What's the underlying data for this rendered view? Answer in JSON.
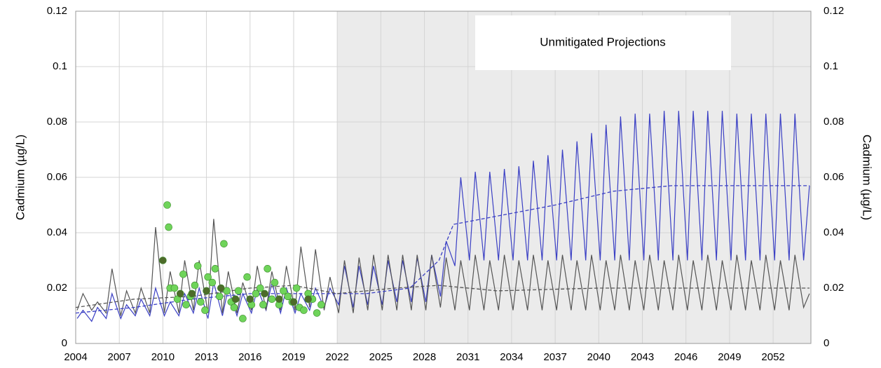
{
  "chart_data": {
    "type": "line",
    "annotation": "Unmitigated Projections",
    "y_label": "Cadmium (µg/L)",
    "y2_label": "Cadmium (µg/L)",
    "xlim": [
      2004,
      2054.6
    ],
    "xticks": [
      2004,
      2007,
      2010,
      2013,
      2016,
      2019,
      2022,
      2025,
      2028,
      2031,
      2034,
      2037,
      2040,
      2043,
      2046,
      2049,
      2052
    ],
    "ylim": [
      0,
      0.12
    ],
    "yticks": [
      0,
      0.02,
      0.04,
      0.06,
      0.08,
      0.1,
      0.12
    ],
    "y2lim": [
      0,
      0.12
    ],
    "y2ticks": [
      0,
      0.02,
      0.04,
      0.06,
      0.08,
      0.1,
      0.12
    ],
    "grid": true,
    "projection_start": 2022,
    "projection_color": "#ebebeb",
    "series": [
      {
        "style": "line",
        "color": "#3a3fc4",
        "x": [
          2004.1,
          2004.5,
          2005.1,
          2005.5,
          2006.1,
          2006.5,
          2007.1,
          2007.5,
          2008.1,
          2008.5,
          2009.1,
          2009.5,
          2010.1,
          2010.5,
          2011.1,
          2011.5,
          2012.1,
          2012.5,
          2013.1,
          2013.5,
          2014.1,
          2014.5,
          2015.1,
          2015.5,
          2016.1,
          2016.5,
          2017.1,
          2017.5,
          2018.1,
          2018.5,
          2019.1,
          2019.5,
          2020.1,
          2020.5,
          2021.1,
          2021.5,
          2022.1,
          2022.5,
          2023.1,
          2023.5,
          2024.1,
          2024.5,
          2025.1,
          2025.5,
          2026.1,
          2026.5,
          2027.1,
          2027.5,
          2028.1,
          2028.5,
          2029.1,
          2029.5,
          2030.1,
          2030.5,
          2031.1,
          2031.5,
          2032.1,
          2032.5,
          2033.1,
          2033.5,
          2034.1,
          2034.5,
          2035.1,
          2035.5,
          2036.1,
          2036.5,
          2037.1,
          2037.5,
          2038.1,
          2038.5,
          2039.1,
          2039.5,
          2040.1,
          2040.5,
          2041.1,
          2041.5,
          2042.1,
          2042.5,
          2043.1,
          2043.5,
          2044.1,
          2044.5,
          2045.1,
          2045.5,
          2046.1,
          2046.5,
          2047.1,
          2047.5,
          2048.1,
          2048.5,
          2049.1,
          2049.5,
          2050.1,
          2050.5,
          2051.1,
          2051.5,
          2052.1,
          2052.5,
          2053.1,
          2053.5,
          2054.1,
          2054.5
        ],
        "values": [
          0.009,
          0.012,
          0.008,
          0.013,
          0.009,
          0.018,
          0.009,
          0.014,
          0.01,
          0.016,
          0.01,
          0.02,
          0.01,
          0.015,
          0.01,
          0.018,
          0.011,
          0.02,
          0.009,
          0.022,
          0.01,
          0.02,
          0.01,
          0.018,
          0.011,
          0.02,
          0.012,
          0.022,
          0.011,
          0.02,
          0.011,
          0.018,
          0.012,
          0.02,
          0.013,
          0.02,
          0.014,
          0.028,
          0.013,
          0.028,
          0.014,
          0.028,
          0.014,
          0.03,
          0.015,
          0.03,
          0.015,
          0.031,
          0.015,
          0.032,
          0.017,
          0.037,
          0.028,
          0.06,
          0.03,
          0.062,
          0.03,
          0.062,
          0.03,
          0.063,
          0.03,
          0.064,
          0.03,
          0.066,
          0.03,
          0.068,
          0.03,
          0.07,
          0.03,
          0.073,
          0.03,
          0.076,
          0.03,
          0.079,
          0.03,
          0.082,
          0.03,
          0.083,
          0.03,
          0.083,
          0.03,
          0.084,
          0.03,
          0.084,
          0.03,
          0.084,
          0.03,
          0.084,
          0.03,
          0.084,
          0.03,
          0.083,
          0.03,
          0.083,
          0.03,
          0.083,
          0.03,
          0.083,
          0.03,
          0.083,
          0.03,
          0.057
        ]
      },
      {
        "style": "line",
        "color": "#555555",
        "x": [
          2004.1,
          2004.5,
          2005.1,
          2005.5,
          2006.1,
          2006.5,
          2007.1,
          2007.5,
          2008.1,
          2008.5,
          2009.1,
          2009.5,
          2010.1,
          2010.5,
          2011.1,
          2011.5,
          2012.1,
          2012.5,
          2013.1,
          2013.5,
          2014.1,
          2014.5,
          2015.1,
          2015.5,
          2016.1,
          2016.5,
          2017.1,
          2017.5,
          2018.1,
          2018.5,
          2019.1,
          2019.5,
          2020.1,
          2020.5,
          2021.1,
          2021.5,
          2022.1,
          2022.5,
          2023.1,
          2023.5,
          2024.1,
          2024.5,
          2025.1,
          2025.5,
          2026.1,
          2026.5,
          2027.1,
          2027.5,
          2028.1,
          2028.5,
          2029.1,
          2029.5,
          2030.1,
          2030.5,
          2031.1,
          2031.5,
          2032.1,
          2032.5,
          2033.1,
          2033.5,
          2034.1,
          2034.5,
          2035.1,
          2035.5,
          2036.1,
          2036.5,
          2037.1,
          2037.5,
          2038.1,
          2038.5,
          2039.1,
          2039.5,
          2040.1,
          2040.5,
          2041.1,
          2041.5,
          2042.1,
          2042.5,
          2043.1,
          2043.5,
          2044.1,
          2044.5,
          2045.1,
          2045.5,
          2046.1,
          2046.5,
          2047.1,
          2047.5,
          2048.1,
          2048.5,
          2049.1,
          2049.5,
          2050.1,
          2050.5,
          2051.1,
          2051.5,
          2052.1,
          2052.5,
          2053.1,
          2053.5,
          2054.1,
          2054.5
        ],
        "values": [
          0.012,
          0.018,
          0.012,
          0.015,
          0.011,
          0.027,
          0.01,
          0.019,
          0.011,
          0.02,
          0.011,
          0.042,
          0.011,
          0.026,
          0.011,
          0.03,
          0.012,
          0.03,
          0.011,
          0.045,
          0.011,
          0.026,
          0.011,
          0.022,
          0.012,
          0.028,
          0.012,
          0.026,
          0.012,
          0.028,
          0.012,
          0.035,
          0.013,
          0.034,
          0.012,
          0.024,
          0.011,
          0.03,
          0.011,
          0.031,
          0.012,
          0.032,
          0.012,
          0.032,
          0.012,
          0.032,
          0.012,
          0.032,
          0.012,
          0.032,
          0.013,
          0.031,
          0.012,
          0.03,
          0.012,
          0.032,
          0.012,
          0.03,
          0.012,
          0.032,
          0.012,
          0.03,
          0.012,
          0.032,
          0.012,
          0.03,
          0.012,
          0.032,
          0.012,
          0.03,
          0.012,
          0.032,
          0.012,
          0.03,
          0.012,
          0.032,
          0.012,
          0.03,
          0.012,
          0.032,
          0.012,
          0.03,
          0.012,
          0.032,
          0.012,
          0.03,
          0.012,
          0.032,
          0.012,
          0.03,
          0.012,
          0.032,
          0.012,
          0.03,
          0.012,
          0.032,
          0.012,
          0.03,
          0.012,
          0.032,
          0.013,
          0.018
        ]
      },
      {
        "style": "dashed",
        "color": "#3a3fc4",
        "x": [
          2004,
          2008,
          2012,
          2016,
          2020,
          2024,
          2027,
          2029,
          2030,
          2033,
          2037,
          2041,
          2045,
          2054.5
        ],
        "values": [
          0.011,
          0.013,
          0.016,
          0.018,
          0.018,
          0.018,
          0.02,
          0.03,
          0.043,
          0.046,
          0.05,
          0.055,
          0.057,
          0.057
        ]
      },
      {
        "style": "dashed",
        "color": "#555555",
        "x": [
          2004,
          2008,
          2012,
          2016,
          2019,
          2022,
          2026,
          2029,
          2033,
          2040,
          2054.5
        ],
        "values": [
          0.013,
          0.016,
          0.017,
          0.02,
          0.021,
          0.018,
          0.02,
          0.021,
          0.019,
          0.02,
          0.02
        ]
      },
      {
        "style": "scatter",
        "color": "#6fd45a",
        "marker_size": 5,
        "x": [
          2010.3,
          2010.4,
          2010.5,
          2010.8,
          2011.0,
          2011.4,
          2011.6,
          2011.9,
          2012.2,
          2012.4,
          2012.6,
          2012.9,
          2013.1,
          2013.4,
          2013.6,
          2013.9,
          2014.2,
          2014.4,
          2014.7,
          2014.9,
          2015.2,
          2015.5,
          2015.8,
          2016.1,
          2016.4,
          2016.7,
          2016.9,
          2017.2,
          2017.5,
          2017.7,
          2018.0,
          2018.3,
          2018.6,
          2018.9,
          2019.2,
          2019.4,
          2019.7,
          2020.0,
          2020.3,
          2020.6,
          2020.9
        ],
        "values": [
          0.05,
          0.042,
          0.02,
          0.02,
          0.016,
          0.025,
          0.014,
          0.017,
          0.021,
          0.028,
          0.015,
          0.012,
          0.024,
          0.022,
          0.027,
          0.017,
          0.036,
          0.019,
          0.015,
          0.013,
          0.019,
          0.009,
          0.024,
          0.014,
          0.018,
          0.02,
          0.014,
          0.027,
          0.016,
          0.022,
          0.014,
          0.019,
          0.017,
          0.015,
          0.02,
          0.013,
          0.012,
          0.018,
          0.016,
          0.011,
          0.014
        ]
      },
      {
        "style": "scatter",
        "color": "#4d6b2a",
        "marker_size": 5,
        "x": [
          2010.0,
          2011.2,
          2012.0,
          2013.0,
          2014.0,
          2015.0,
          2016.0,
          2017.0,
          2018.0,
          2019.0,
          2020.0
        ],
        "values": [
          0.03,
          0.018,
          0.018,
          0.019,
          0.02,
          0.016,
          0.016,
          0.018,
          0.016,
          0.015,
          0.016
        ]
      }
    ]
  }
}
